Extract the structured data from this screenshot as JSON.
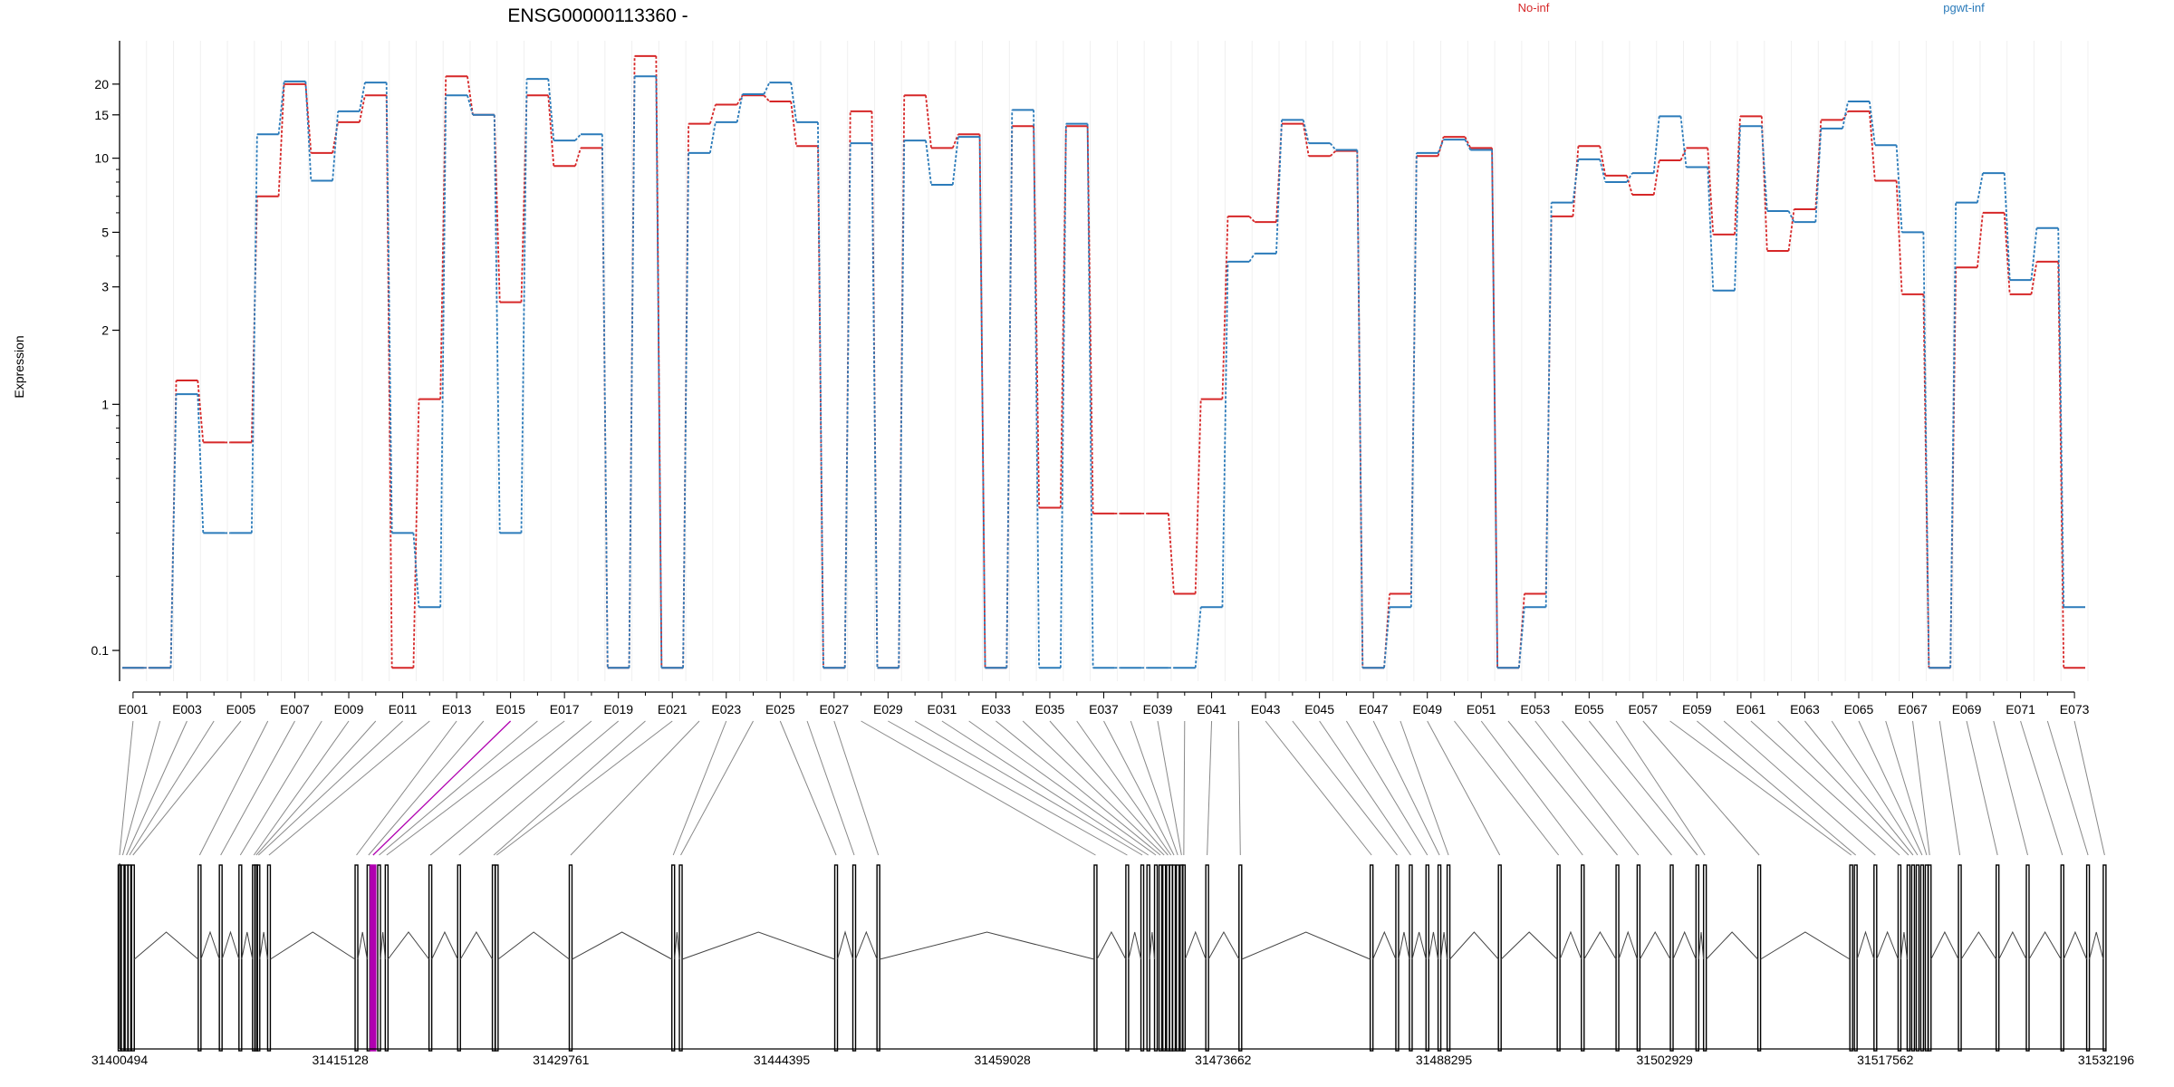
{
  "chart_data": {
    "type": "line",
    "title": "ENSG00000113360 -",
    "ylabel": "Expression",
    "xlabel": "",
    "y_scale": "log",
    "ylim": [
      0.075,
      30
    ],
    "y_ticks": [
      0.1,
      1,
      2,
      3,
      5,
      10,
      15,
      20
    ],
    "grid": true,
    "legend": "top",
    "exon_count": 73,
    "exon_tick_labels": [
      "E001",
      "E003",
      "E005",
      "E007",
      "E009",
      "E011",
      "E013",
      "E015",
      "E017",
      "E019",
      "E021",
      "E023",
      "E025",
      "E027",
      "E029",
      "E031",
      "E033",
      "E035",
      "E037",
      "E039",
      "E041",
      "E043",
      "E045",
      "E047",
      "E049",
      "E051",
      "E053",
      "E055",
      "E057",
      "E059",
      "E061",
      "E063",
      "E065",
      "E067",
      "E069",
      "E071",
      "E073"
    ],
    "series": [
      {
        "name": "No-inf",
        "color": "#d62728",
        "values": [
          0.085,
          0.085,
          1.25,
          0.7,
          0.7,
          7.0,
          20.0,
          10.5,
          14.0,
          18.0,
          0.085,
          1.05,
          21.5,
          15.0,
          2.6,
          18.0,
          9.3,
          11.0,
          0.085,
          26.0,
          0.085,
          13.8,
          16.5,
          18.0,
          17.0,
          11.2,
          0.085,
          15.5,
          0.085,
          18.0,
          11.0,
          12.5,
          0.085,
          13.5,
          0.38,
          13.5,
          0.36,
          0.36,
          0.36,
          0.17,
          1.05,
          5.8,
          5.5,
          13.8,
          10.2,
          10.7,
          0.085,
          0.17,
          10.2,
          12.2,
          11.0,
          0.085,
          0.17,
          5.8,
          11.2,
          8.5,
          7.1,
          9.8,
          11.0,
          4.9,
          14.8,
          4.2,
          6.2,
          14.3,
          15.5,
          8.1,
          2.8,
          0.085,
          3.6,
          6.0,
          2.8,
          3.8,
          0.085
        ]
      },
      {
        "name": "pgwt-inf",
        "color": "#2b7bba",
        "values": [
          0.085,
          0.085,
          1.1,
          0.3,
          0.3,
          12.5,
          20.5,
          8.1,
          15.5,
          20.3,
          0.3,
          0.15,
          18.0,
          15.0,
          0.3,
          21.0,
          11.8,
          12.5,
          0.085,
          21.5,
          0.085,
          10.5,
          14.0,
          18.2,
          20.3,
          14.0,
          0.085,
          11.5,
          0.085,
          11.8,
          7.8,
          12.2,
          0.085,
          15.7,
          0.085,
          13.8,
          0.085,
          0.085,
          0.085,
          0.085,
          0.15,
          3.8,
          4.1,
          14.3,
          11.5,
          10.8,
          0.085,
          0.15,
          10.5,
          11.9,
          10.8,
          0.085,
          0.15,
          6.6,
          9.9,
          8.0,
          8.7,
          14.8,
          9.2,
          2.9,
          13.5,
          6.1,
          5.5,
          13.2,
          17.0,
          11.3,
          5.0,
          0.085,
          6.6,
          8.7,
          3.2,
          5.2,
          0.15
        ]
      }
    ],
    "genomic_axis": {
      "start": 31400494,
      "end": 31532196,
      "tick_labels": [
        "31400494",
        "31415128",
        "31429761",
        "31444395",
        "31459028",
        "31473662",
        "31488295",
        "31502929",
        "31517562",
        "31532196"
      ],
      "exon_positions": [
        31400494,
        31400700,
        31400950,
        31401150,
        31401380,
        31405800,
        31407200,
        31408500,
        31409400,
        31409550,
        31409700,
        31410400,
        31416200,
        31417000,
        31417300,
        31417700,
        31418200,
        31421100,
        31423000,
        31425300,
        31425500,
        31430400,
        31437200,
        31437700,
        31448000,
        31449200,
        31450800,
        31465200,
        31467300,
        31468300,
        31468700,
        31469200,
        31469500,
        31469750,
        31470000,
        31470200,
        31470400,
        31470650,
        31470900,
        31471050,
        31474800,
        31472600,
        31483500,
        31485200,
        31486100,
        31487200,
        31488000,
        31488600,
        31492000,
        31495900,
        31497500,
        31499800,
        31501200,
        31503400,
        31505100,
        31505600,
        31509200,
        31515300,
        31515600,
        31516900,
        31518500,
        31519100,
        31519400,
        31519700,
        31520000,
        31520300,
        31520500,
        31522500,
        31525000,
        31527000,
        31529300,
        31531000,
        31532100
      ],
      "highlighted_exon": "E015",
      "highlight_color": "#b000b0"
    }
  }
}
